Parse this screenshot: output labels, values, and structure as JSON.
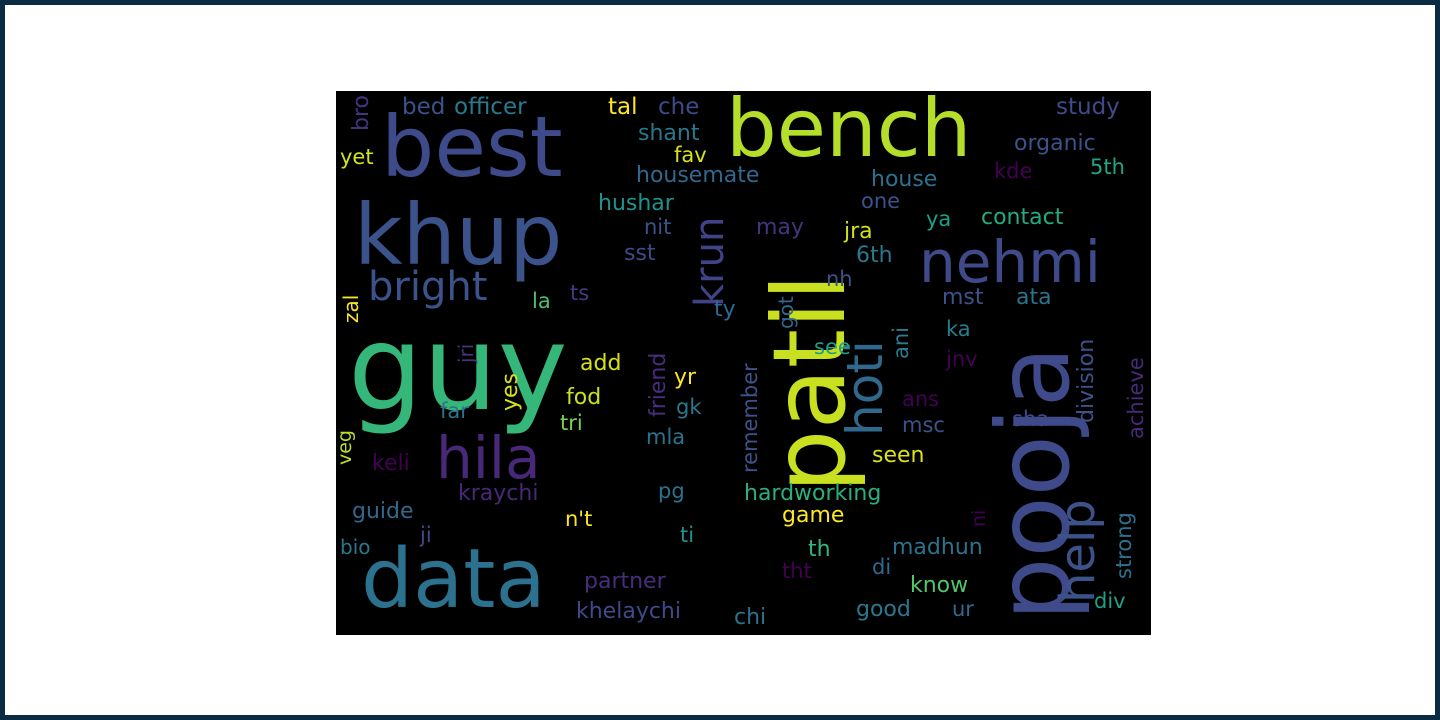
{
  "colors": {
    "outer_border": "#0b2b40",
    "frame": "#ffffff",
    "cloud_background": "#000000"
  },
  "words": [
    {
      "text": "guy",
      "color": "#35b779"
    },
    {
      "text": "patil",
      "color": "#c8e020"
    },
    {
      "text": "pooja",
      "color": "#3e4a89"
    },
    {
      "text": "best",
      "color": "#3e4a89"
    },
    {
      "text": "khup",
      "color": "#3b528b"
    },
    {
      "text": "bench",
      "color": "#b5de2b"
    },
    {
      "text": "data",
      "color": "#2c728e"
    },
    {
      "text": "nehmi",
      "color": "#3e4a89"
    },
    {
      "text": "hila",
      "color": "#482878"
    },
    {
      "text": "hoti",
      "color": "#31688e"
    },
    {
      "text": "help",
      "color": "#3b528b"
    },
    {
      "text": "bright",
      "color": "#3b528b"
    },
    {
      "text": "krun",
      "color": "#404387"
    },
    {
      "text": "bed",
      "color": "#3b528b"
    },
    {
      "text": "officer",
      "color": "#2a788e"
    },
    {
      "text": "tal",
      "color": "#fde725"
    },
    {
      "text": "che",
      "color": "#3e4a89"
    },
    {
      "text": "study",
      "color": "#3e4a89"
    },
    {
      "text": "bro",
      "color": "#46337e"
    },
    {
      "text": "yet",
      "color": "#d2e21b"
    },
    {
      "text": "shant",
      "color": "#2a788e"
    },
    {
      "text": "fav",
      "color": "#d8e219"
    },
    {
      "text": "organic",
      "color": "#3b528b"
    },
    {
      "text": "kde",
      "color": "#440154"
    },
    {
      "text": "5th",
      "color": "#21a685"
    },
    {
      "text": "housemate",
      "color": "#31688e"
    },
    {
      "text": "house",
      "color": "#2c728e"
    },
    {
      "text": "one",
      "color": "#3b528b"
    },
    {
      "text": "hushar",
      "color": "#20928c"
    },
    {
      "text": "nit",
      "color": "#3b528b"
    },
    {
      "text": "may",
      "color": "#46337e"
    },
    {
      "text": "jra",
      "color": "#d0e11c"
    },
    {
      "text": "ya",
      "color": "#1f9e89"
    },
    {
      "text": "contact",
      "color": "#25ab82"
    },
    {
      "text": "sst",
      "color": "#3e4a89"
    },
    {
      "text": "6th",
      "color": "#2a788e"
    },
    {
      "text": "nh",
      "color": "#3b528b"
    },
    {
      "text": "la",
      "color": "#4ac16d"
    },
    {
      "text": "ts",
      "color": "#443a83"
    },
    {
      "text": "zal",
      "color": "#fde725"
    },
    {
      "text": "ty",
      "color": "#31688e"
    },
    {
      "text": "got",
      "color": "#31688e"
    },
    {
      "text": "mst",
      "color": "#3b528b"
    },
    {
      "text": "ata",
      "color": "#2c728e"
    },
    {
      "text": "division",
      "color": "#3b528b"
    },
    {
      "text": "ani",
      "color": "#287d8e"
    },
    {
      "text": "ka",
      "color": "#277f8e"
    },
    {
      "text": "achieve",
      "color": "#482878"
    },
    {
      "text": "jri",
      "color": "#46337e"
    },
    {
      "text": "friend",
      "color": "#472d7b"
    },
    {
      "text": "add",
      "color": "#d8e219"
    },
    {
      "text": "see",
      "color": "#1f9e89"
    },
    {
      "text": "jnv",
      "color": "#440154"
    },
    {
      "text": "remember",
      "color": "#3b528b"
    },
    {
      "text": "yes",
      "color": "#d8e219"
    },
    {
      "text": "yr",
      "color": "#fde725"
    },
    {
      "text": "fod",
      "color": "#cae11f"
    },
    {
      "text": "far",
      "color": "#2c728e"
    },
    {
      "text": "gk",
      "color": "#2a788e"
    },
    {
      "text": "ans",
      "color": "#440154"
    },
    {
      "text": "tri",
      "color": "#7ad151"
    },
    {
      "text": "msc",
      "color": "#3b528b"
    },
    {
      "text": "sha",
      "color": "#3e4a89"
    },
    {
      "text": "veg",
      "color": "#bddf26"
    },
    {
      "text": "mla",
      "color": "#2c728e"
    },
    {
      "text": "keli",
      "color": "#440154"
    },
    {
      "text": "seen",
      "color": "#dde318"
    },
    {
      "text": "strong",
      "color": "#2c728e"
    },
    {
      "text": "kraychi",
      "color": "#482878"
    },
    {
      "text": "pg",
      "color": "#2c728e"
    },
    {
      "text": "hardworking",
      "color": "#2ab07f"
    },
    {
      "text": "guide",
      "color": "#31688e"
    },
    {
      "text": "n't",
      "color": "#fde725"
    },
    {
      "text": "game",
      "color": "#fde725"
    },
    {
      "text": "ni",
      "color": "#440154"
    },
    {
      "text": "ji",
      "color": "#3e4a89"
    },
    {
      "text": "ti",
      "color": "#20928c"
    },
    {
      "text": "madhun",
      "color": "#2c728e"
    },
    {
      "text": "bio",
      "color": "#2a788e"
    },
    {
      "text": "th",
      "color": "#35b779"
    },
    {
      "text": "di",
      "color": "#31688e"
    },
    {
      "text": "partner",
      "color": "#472d7b"
    },
    {
      "text": "tht",
      "color": "#440154"
    },
    {
      "text": "know",
      "color": "#52c569"
    },
    {
      "text": "div",
      "color": "#1f9e89"
    },
    {
      "text": "khelaychi",
      "color": "#3e4a89"
    },
    {
      "text": "chi",
      "color": "#2c728e"
    },
    {
      "text": "good",
      "color": "#2a788e"
    },
    {
      "text": "ur",
      "color": "#31688e"
    }
  ]
}
